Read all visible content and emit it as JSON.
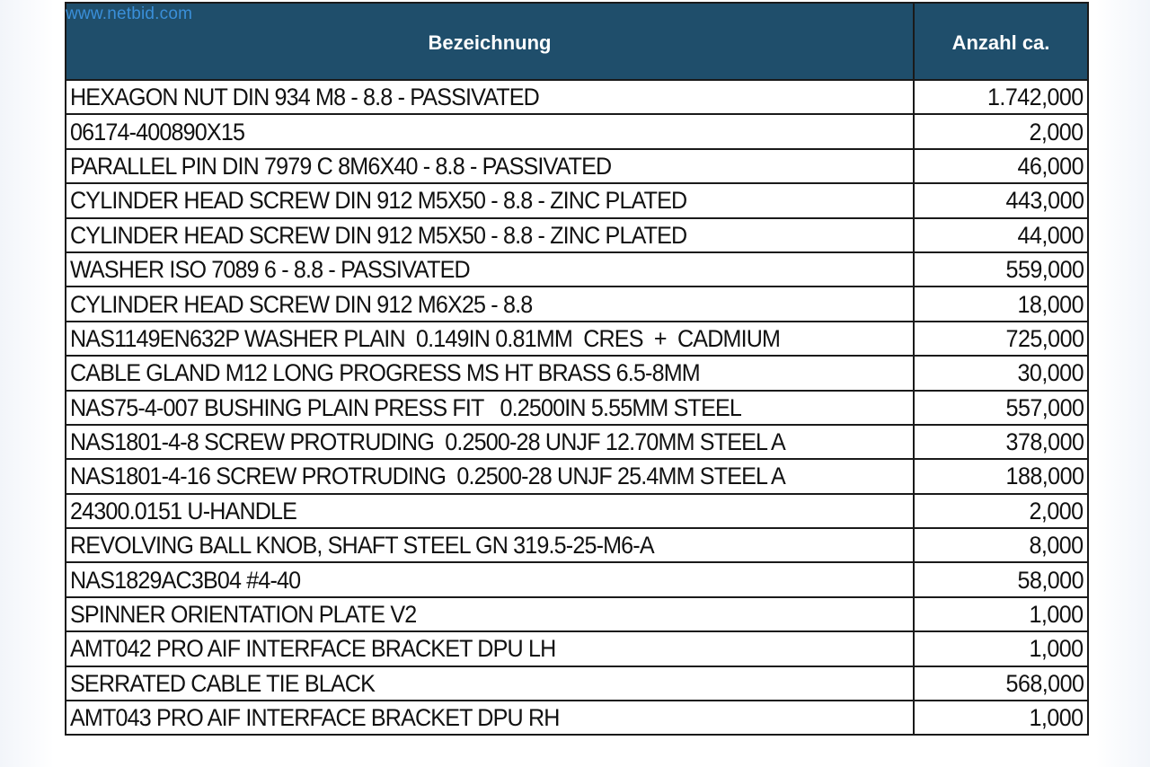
{
  "watermark": "www.netbid.com",
  "table": {
    "headers": {
      "name": "Bezeichnung",
      "qty": "Anzahl ca."
    },
    "rows": [
      {
        "name": "HEXAGON NUT DIN 934 M8 - 8.8 - PASSIVATED",
        "qty": "1.742,000"
      },
      {
        "name": "06174-400890X15",
        "qty": "2,000"
      },
      {
        "name": "PARALLEL PIN DIN 7979 C 8M6X40 - 8.8 - PASSIVATED",
        "qty": "46,000"
      },
      {
        "name": "CYLINDER HEAD SCREW DIN 912 M5X50 - 8.8 - ZINC PLATED",
        "qty": "443,000"
      },
      {
        "name": "CYLINDER HEAD SCREW DIN 912 M5X50 - 8.8 - ZINC PLATED",
        "qty": "44,000"
      },
      {
        "name": "WASHER ISO 7089 6 - 8.8 - PASSIVATED",
        "qty": "559,000"
      },
      {
        "name": "CYLINDER HEAD SCREW DIN 912 M6X25 - 8.8",
        "qty": "18,000"
      },
      {
        "name": "NAS1149EN632P WASHER PLAIN  0.149IN 0.81MM  CRES  +  CADMIUM",
        "qty": "725,000"
      },
      {
        "name": "CABLE GLAND M12 LONG PROGRESS MS HT BRASS 6.5-8MM",
        "qty": "30,000"
      },
      {
        "name": "NAS75-4-007 BUSHING PLAIN PRESS FIT   0.2500IN 5.55MM STEEL",
        "qty": "557,000"
      },
      {
        "name": "NAS1801-4-8 SCREW PROTRUDING  0.2500-28 UNJF 12.70MM STEEL A",
        "qty": "378,000"
      },
      {
        "name": "NAS1801-4-16 SCREW PROTRUDING  0.2500-28 UNJF 25.4MM STEEL A",
        "qty": "188,000"
      },
      {
        "name": "24300.0151 U-HANDLE",
        "qty": "2,000"
      },
      {
        "name": "REVOLVING BALL KNOB, SHAFT STEEL GN 319.5-25-M6-A",
        "qty": "8,000"
      },
      {
        "name": "NAS1829AC3B04 #4-40",
        "qty": "58,000"
      },
      {
        "name": "SPINNER ORIENTATION PLATE V2",
        "qty": "1,000"
      },
      {
        "name": "AMT042 PRO AIF INTERFACE BRACKET DPU LH",
        "qty": "1,000"
      },
      {
        "name": "SERRATED CABLE TIE BLACK",
        "qty": "568,000"
      },
      {
        "name": "AMT043 PRO AIF INTERFACE BRACKET DPU RH",
        "qty": "1,000"
      }
    ]
  },
  "colors": {
    "header_bg": "#1f4e6b",
    "header_text": "#ffffff",
    "watermark": "#3a8fd9",
    "grid": "#1a1a1a"
  }
}
